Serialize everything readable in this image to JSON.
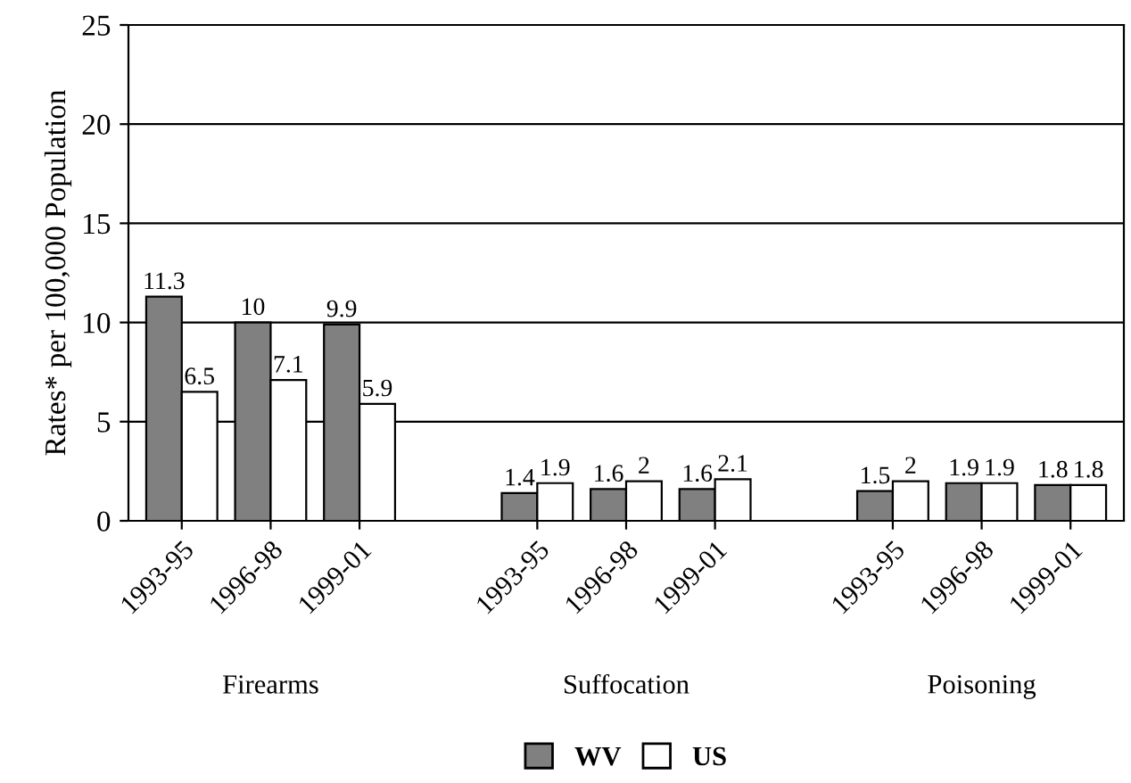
{
  "chart_data": {
    "type": "bar",
    "categories": [
      "1993-95",
      "1996-98",
      "1999-01",
      null,
      "1993-95",
      "1996-98",
      "1999-01",
      null,
      "1993-95",
      "1996-98",
      "1999-01"
    ],
    "series": [
      {
        "name": "WV",
        "color": "#808080",
        "values": [
          11.3,
          10,
          9.9,
          null,
          1.4,
          1.6,
          1.6,
          null,
          1.5,
          1.9,
          1.8
        ]
      },
      {
        "name": "US",
        "color": "#ffffff",
        "values": [
          6.5,
          7.1,
          5.9,
          null,
          1.9,
          2,
          2.1,
          null,
          2,
          1.9,
          1.8
        ]
      }
    ],
    "ylabel": "Rates* per 100,000 Population",
    "ylim": [
      0,
      25
    ],
    "yticks": [
      0,
      5,
      10,
      15,
      20,
      25
    ],
    "annotations": [
      "Firearms",
      "Suffocation",
      "Poisoning"
    ],
    "data_labels": true,
    "grid": "y",
    "legend": "bottom"
  }
}
